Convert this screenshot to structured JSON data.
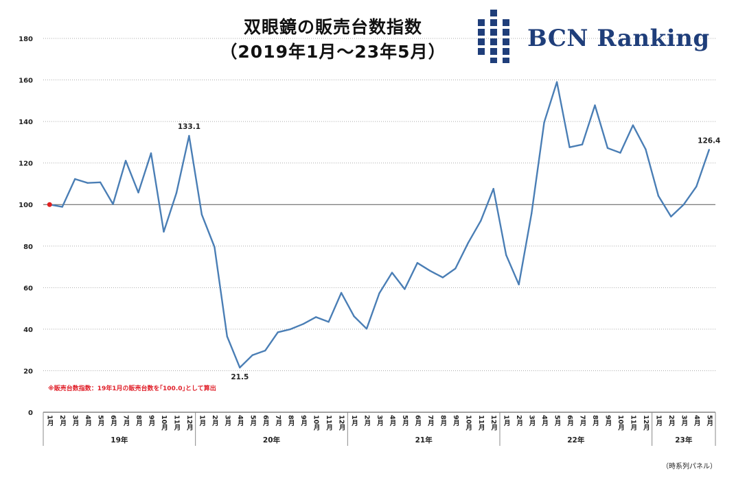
{
  "title": {
    "line1": "双眼鏡の販売台数指数",
    "line2": "（2019年1月～23年5月）"
  },
  "brand": {
    "name": "BCN Ranking",
    "color": "#1f3e7a",
    "logo_icon": "bcn-grid-logo-icon"
  },
  "note": "※販売台数指数：19年1月の販売台数を｢100.0｣として算出",
  "footer": "（時系列パネル）",
  "chart_data": {
    "type": "line",
    "categories": [
      "1月",
      "2月",
      "3月",
      "4月",
      "5月",
      "6月",
      "7月",
      "8月",
      "9月",
      "10月",
      "11月",
      "12月",
      "1月",
      "2月",
      "3月",
      "4月",
      "5月",
      "6月",
      "7月",
      "8月",
      "9月",
      "10月",
      "11月",
      "12月",
      "1月",
      "2月",
      "3月",
      "4月",
      "5月",
      "6月",
      "7月",
      "8月",
      "9月",
      "10月",
      "11月",
      "12月",
      "1月",
      "2月",
      "3月",
      "4月",
      "5月",
      "6月",
      "7月",
      "8月",
      "9月",
      "10月",
      "11月",
      "12月",
      "1月",
      "2月",
      "3月",
      "4月",
      "5月"
    ],
    "years": [
      {
        "label": "19年",
        "start": 0,
        "count": 12
      },
      {
        "label": "20年",
        "start": 12,
        "count": 12
      },
      {
        "label": "21年",
        "start": 24,
        "count": 12
      },
      {
        "label": "22年",
        "start": 36,
        "count": 12
      },
      {
        "label": "23年",
        "start": 48,
        "count": 5
      }
    ],
    "series": [
      {
        "color": "#4a7eb5",
        "values": [
          100,
          98.9,
          112.3,
          110.4,
          110.7,
          100.2,
          121.1,
          105.8,
          124.7,
          86.9,
          105.6,
          133.1,
          95.2,
          79.6,
          36.5,
          21.5,
          27.5,
          29.7,
          38.5,
          40.0,
          42.5,
          45.8,
          43.5,
          57.5,
          46.2,
          40.2,
          57.3,
          67.2,
          59.3,
          71.9,
          68.1,
          64.9,
          69.2,
          81.5,
          92.2,
          107.6,
          75.7,
          61.5,
          95.7,
          139.6,
          159.0,
          127.6,
          128.9,
          147.8,
          127.2,
          124.9,
          138.2,
          126.6,
          104.2,
          94.2,
          100.0,
          108.7,
          126.4
        ]
      }
    ],
    "ylim": [
      0,
      180
    ],
    "yticks": [
      0,
      20,
      40,
      60,
      80,
      100,
      120,
      140,
      160,
      180
    ],
    "reference_line": 100,
    "start_marker_color": "#e02020",
    "annotations": [
      {
        "index": 11,
        "text": "133.1",
        "position": "above"
      },
      {
        "index": 15,
        "text": "21.5",
        "position": "below"
      },
      {
        "index": 52,
        "text": "126.4",
        "position": "above"
      }
    ],
    "grid": "dotted horizontal",
    "legend": "none"
  }
}
